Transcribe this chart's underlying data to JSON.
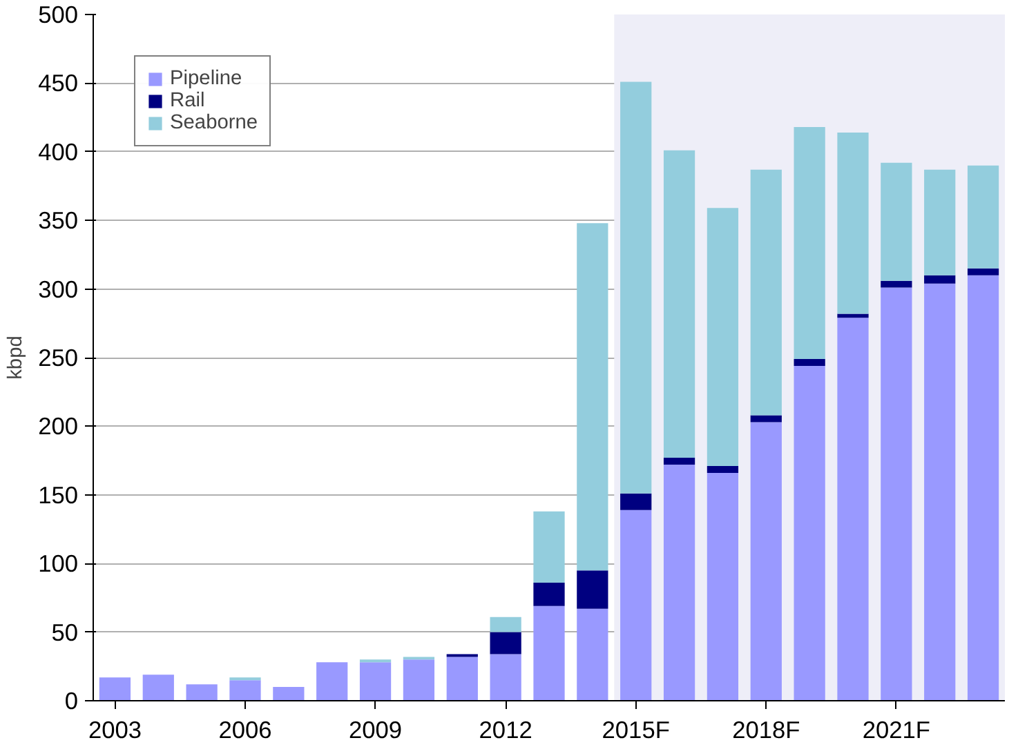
{
  "chart_data": {
    "type": "bar",
    "stacked": true,
    "ylabel": "kbpd",
    "categories": [
      "2003",
      null,
      null,
      "2006",
      null,
      null,
      "2009",
      null,
      null,
      "2012",
      null,
      null,
      "2015F",
      null,
      null,
      "2018F",
      null,
      null,
      "2021F",
      null,
      null
    ],
    "series": [
      {
        "name": "Pipeline",
        "color": "#9999ff",
        "values": [
          17,
          19,
          12,
          15,
          10,
          28,
          28,
          30,
          32,
          34,
          69,
          67,
          139,
          172,
          166,
          203,
          244,
          279,
          301,
          304,
          310
        ]
      },
      {
        "name": "Rail",
        "color": "#000080",
        "values": [
          0,
          0,
          0,
          0,
          0,
          0,
          0,
          0,
          2,
          16,
          17,
          28,
          12,
          5,
          5,
          5,
          5,
          3,
          5,
          6,
          5
        ]
      },
      {
        "name": "Seaborne",
        "color": "#93cddd",
        "values": [
          0,
          0,
          0,
          2,
          0,
          0,
          2,
          2,
          0,
          11,
          52,
          253,
          300,
          224,
          188,
          179,
          169,
          132,
          86,
          77,
          75
        ]
      }
    ],
    "ylim": [
      0,
      500
    ],
    "yticks": [
      0,
      50,
      100,
      150,
      200,
      250,
      300,
      350,
      400,
      450,
      500
    ],
    "grid": "y",
    "legend": "top left"
  }
}
